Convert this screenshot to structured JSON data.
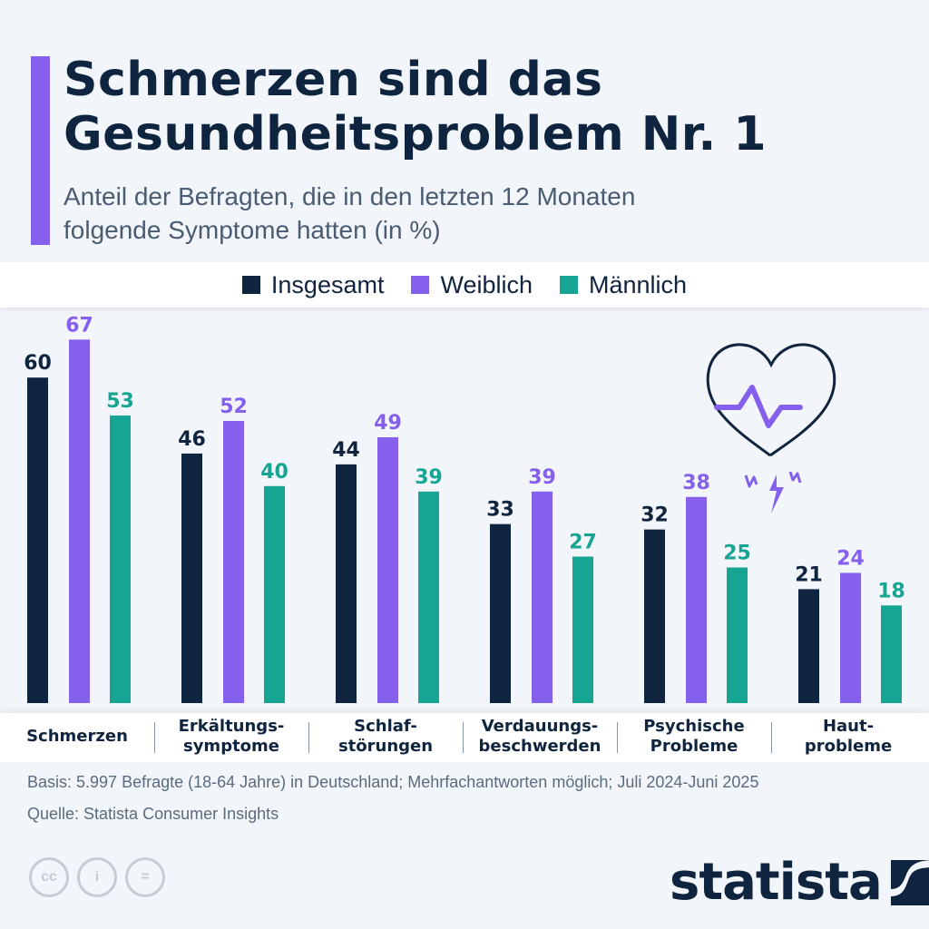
{
  "header": {
    "title_line1": "Schmerzen sind das",
    "title_line2": "Gesundheitsproblem Nr. 1",
    "subtitle_line1": "Anteil der Befragten, die in den letzten 12 Monaten",
    "subtitle_line2": "folgende Symptome hatten (in %)"
  },
  "colors": {
    "insgesamt": "#0f243e",
    "weiblich": "#8460ec",
    "maennlich": "#17a593",
    "accent": "#8460ec"
  },
  "chart_data": {
    "type": "bar",
    "title": "Schmerzen sind das Gesundheitsproblem Nr. 1",
    "subtitle": "Anteil der Befragten, die in den letzten 12 Monaten folgende Symptome hatten (in %)",
    "categories": [
      "Schmerzen",
      "Erkältungs-\nsymptome",
      "Schlaf-\nstörungen",
      "Verdauungs-\nbeschwerden",
      "Psychische\nProbleme",
      "Haut-\nprobleme"
    ],
    "series": [
      {
        "name": "Insgesamt",
        "color": "#0f243e",
        "values": [
          60,
          46,
          44,
          33,
          32,
          21
        ]
      },
      {
        "name": "Weiblich",
        "color": "#8460ec",
        "values": [
          67,
          52,
          49,
          39,
          38,
          24
        ]
      },
      {
        "name": "Männlich",
        "color": "#17a593",
        "values": [
          53,
          40,
          39,
          27,
          25,
          18
        ]
      }
    ],
    "xlabel": "",
    "ylabel": "",
    "ylim": [
      0,
      70
    ],
    "grid": false,
    "legend": "top-center",
    "data_labels": true
  },
  "footer": {
    "basis": "Basis: 5.997 Befragte (18-64 Jahre) in Deutschland; Mehrfachantworten möglich; Juli 2024-Juni 2025",
    "source": "Quelle: Statista Consumer Insights",
    "cc_icons": [
      "cc",
      "i",
      "="
    ],
    "logo_text": "statista"
  }
}
